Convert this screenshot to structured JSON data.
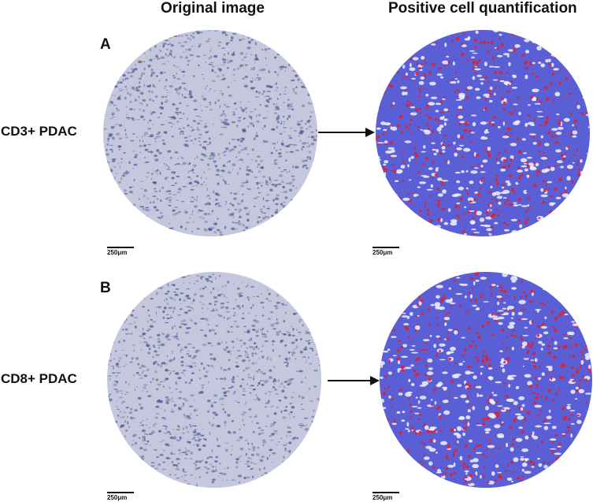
{
  "headers": {
    "left": "Original image",
    "right": "Positive cell quantification"
  },
  "panels": [
    {
      "letter": "A",
      "label": "CD3+ PDAC",
      "scalebar_left": "250μm",
      "scalebar_right": "250μm"
    },
    {
      "letter": "B",
      "label": "CD8+ PDAC",
      "scalebar_left": "250μm",
      "scalebar_right": "250μm"
    }
  ],
  "colors": {
    "he_background": "#c5c7dd",
    "he_stain": "#3d4a8a",
    "dab_stain": "#6b4a2c",
    "quant_negative": "#5a5fd6",
    "quant_positive": "#e0202a"
  }
}
